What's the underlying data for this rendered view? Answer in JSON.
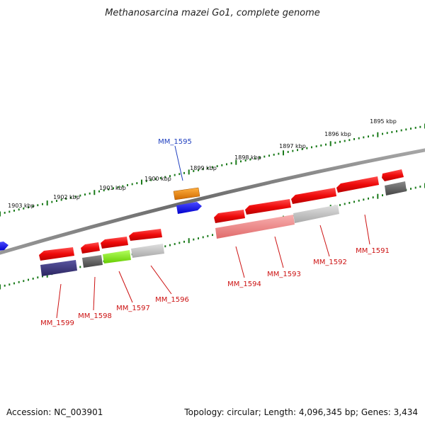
{
  "title": "Methanosarcina mazei Go1, complete genome",
  "footer": {
    "accession": "Accession: NC_003901",
    "summary": "Topology: circular; Length: 4,096,345 bp; Genes: 3,434"
  },
  "kbp_labels": [
    "1895 kbp",
    "1896 kbp",
    "1897 kbp",
    "1898 kbp",
    "1899 kbp",
    "1900 kbp",
    "1901 kbp",
    "1902 kbp",
    "1903 kbp"
  ],
  "gene_labels": [
    {
      "text": "MM_1595",
      "color": "#1f3fbf"
    },
    {
      "text": "MM_1591",
      "color": "#cc1111"
    },
    {
      "text": "MM_1592",
      "color": "#cc1111"
    },
    {
      "text": "MM_1593",
      "color": "#cc1111"
    },
    {
      "text": "MM_1594",
      "color": "#cc1111"
    },
    {
      "text": "MM_1596",
      "color": "#cc1111"
    },
    {
      "text": "MM_1597",
      "color": "#cc1111"
    },
    {
      "text": "MM_1598",
      "color": "#cc1111"
    },
    {
      "text": "MM_1599",
      "color": "#cc1111"
    }
  ],
  "colors": {
    "backbone": "#7a7a7a",
    "tick": "#1a7a1a",
    "forward_cds": "#ff1010",
    "reverse_cds": "#ff1010",
    "blue_feature": "#1010ff",
    "orange_feature": "#f08a10",
    "navy_feature": "#3a357a",
    "lime_feature": "#88ee22",
    "dark_gray_feature": "#666666",
    "light_gray_feature": "#bdbdbd",
    "pink_feature": "#f28a8a"
  }
}
